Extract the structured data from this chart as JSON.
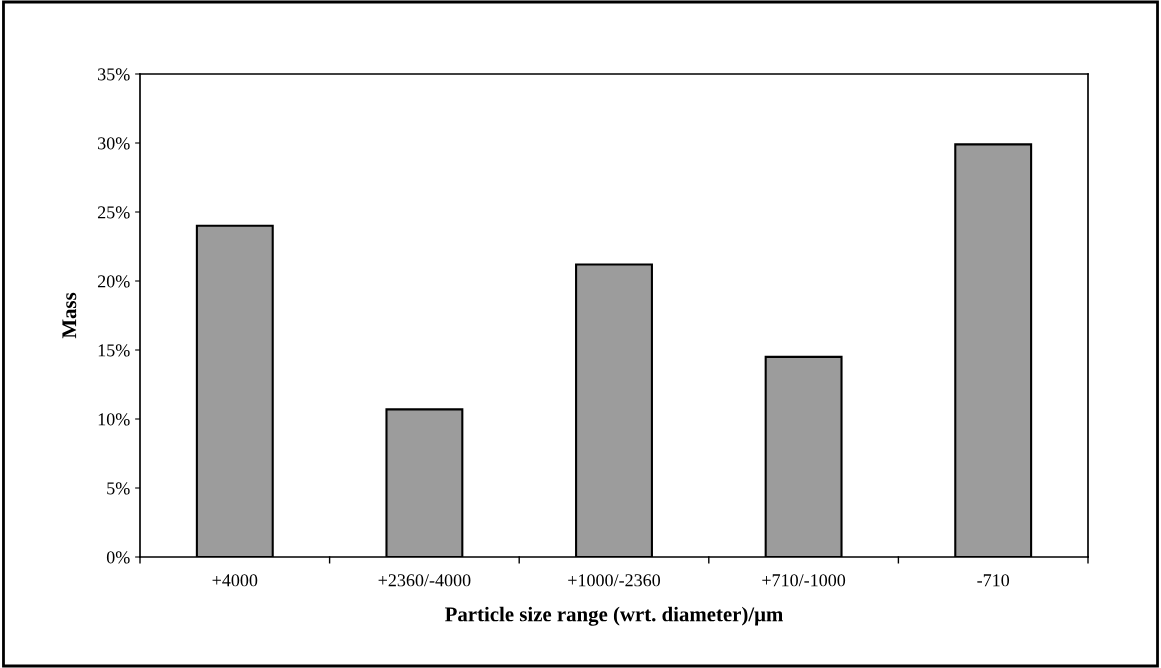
{
  "chart_data": {
    "type": "bar",
    "xlabel": "Particle size range (wrt. diameter)/μm",
    "ylabel": "Mass",
    "categories": [
      "+4000",
      "+2360/-4000",
      "+1000/-2360",
      "+710/-1000",
      "-710"
    ],
    "values": [
      24.0,
      10.7,
      21.2,
      14.5,
      29.9
    ],
    "color": "#9c9c9c",
    "ylim": [
      0,
      35
    ],
    "yticks": [
      {
        "value": 0,
        "label": "0%"
      },
      {
        "value": 5,
        "label": "5%"
      },
      {
        "value": 10,
        "label": "10%"
      },
      {
        "value": 15,
        "label": "15%"
      },
      {
        "value": 20,
        "label": "20%"
      },
      {
        "value": 25,
        "label": "25%"
      },
      {
        "value": 30,
        "label": "30%"
      },
      {
        "value": 35,
        "label": "35%"
      }
    ],
    "grid": false,
    "legend": false
  }
}
